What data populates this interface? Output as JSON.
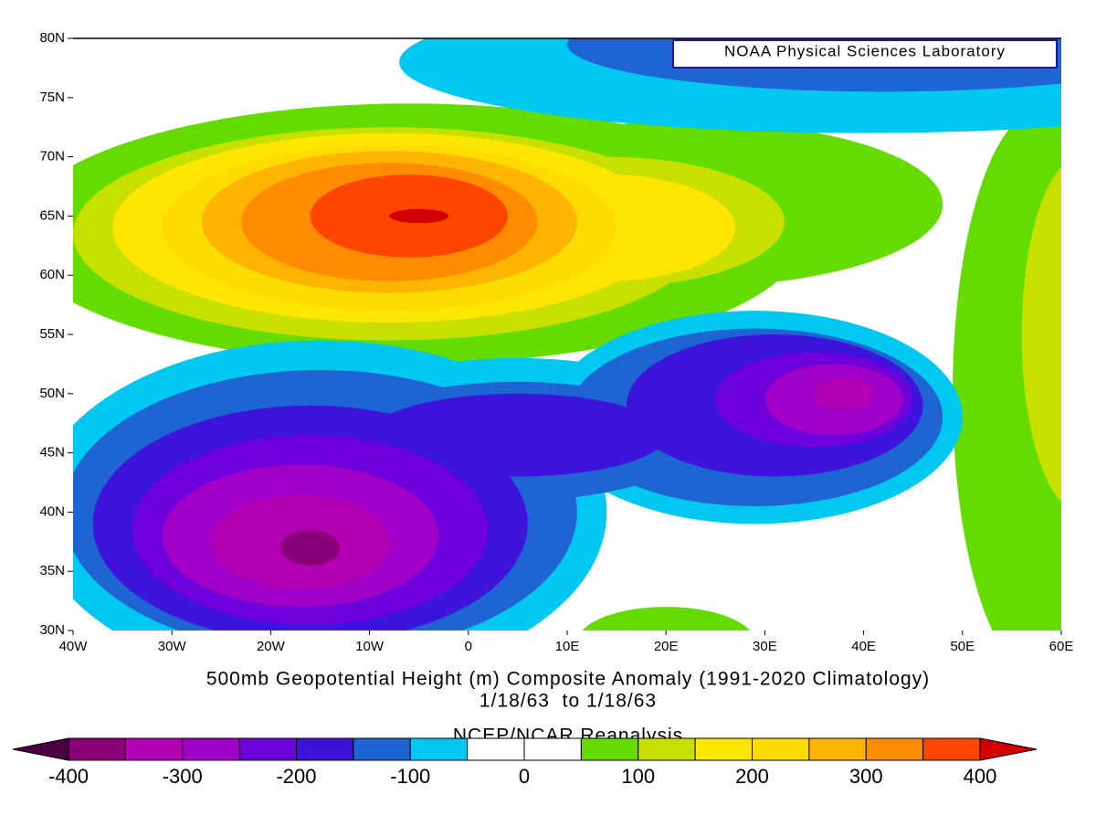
{
  "map": {
    "title": "500mb Geopotential Height (m) Composite Anomaly (1991-2020 Climatology)",
    "subtitle": "1/18/63  to 1/18/63",
    "source": "NCEP/NCAR Reanalysis",
    "credit": "NOAA Physical Sciences Laboratory",
    "xlim": [
      -40,
      60
    ],
    "ylim": [
      30,
      80
    ],
    "xticks": [
      {
        "value": -40,
        "label": "40W"
      },
      {
        "value": -30,
        "label": "30W"
      },
      {
        "value": -20,
        "label": "20W"
      },
      {
        "value": -10,
        "label": "10W"
      },
      0,
      {
        "value": 10,
        "label": "10E"
      },
      {
        "value": 20,
        "label": "20E"
      },
      {
        "value": 30,
        "label": "30E"
      },
      {
        "value": 40,
        "label": "40E"
      },
      {
        "value": 50,
        "label": "50E"
      },
      {
        "value": 60,
        "label": "60E"
      }
    ],
    "yticks": [
      {
        "value": 30,
        "label": "30N"
      },
      {
        "value": 35,
        "label": "35N"
      },
      {
        "value": 40,
        "label": "40N"
      },
      {
        "value": 45,
        "label": "45N"
      },
      {
        "value": 50,
        "label": "50N"
      },
      {
        "value": 55,
        "label": "55N"
      },
      {
        "value": 60,
        "label": "60N"
      },
      {
        "value": 65,
        "label": "65N"
      },
      {
        "value": 70,
        "label": "70N"
      },
      {
        "value": 75,
        "label": "75N"
      },
      {
        "value": 80,
        "label": "80N"
      }
    ],
    "colorbar": {
      "bounds": [
        -400,
        -350,
        -300,
        -250,
        -200,
        -150,
        -100,
        -50,
        0,
        50,
        100,
        150,
        200,
        250,
        300,
        350,
        400
      ],
      "ticks": [
        -400,
        -300,
        -200,
        -100,
        0,
        100,
        200,
        300,
        400
      ],
      "colors": [
        "#4c0044",
        "#8a0078",
        "#b400b4",
        "#a000c8",
        "#6e00dc",
        "#3c14dc",
        "#1e64d2",
        "#00c8f0",
        "#ffffff",
        "#ffffff",
        "#64dc00",
        "#c8e000",
        "#ffe600",
        "#ffdc00",
        "#ffb400",
        "#ff8c00",
        "#ff4600",
        "#d20000"
      ]
    }
  }
}
